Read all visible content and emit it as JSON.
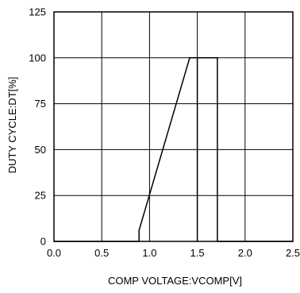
{
  "chart_data": {
    "type": "line",
    "title": "",
    "xlabel": "COMP VOLTAGE:VCOMP[V]",
    "ylabel": "DUTY CYCLE:DT[%]",
    "xlim": [
      0.0,
      2.5
    ],
    "ylim": [
      0,
      125
    ],
    "x_ticks": [
      "0.0",
      "0.5",
      "1.0",
      "1.5",
      "2.0",
      "2.5"
    ],
    "y_ticks": [
      "0",
      "25",
      "50",
      "75",
      "100",
      "125"
    ],
    "x_tick_values": [
      0,
      0.5,
      1.0,
      1.5,
      2.0,
      2.5
    ],
    "y_tick_values": [
      0,
      25,
      50,
      75,
      100,
      125
    ],
    "grid": true,
    "legend": "none",
    "series": [
      {
        "x": [
          0,
          0.89,
          0.89,
          1.42,
          1.5,
          1.5,
          1.71,
          1.71,
          2.5
        ],
        "y": [
          0,
          0,
          6,
          100,
          100,
          0,
          0,
          100,
          0
        ],
        "points": [
          [
            0.0,
            0
          ],
          [
            0.89,
            0
          ],
          [
            0.89,
            6
          ],
          [
            1.42,
            100
          ],
          [
            1.71,
            100
          ],
          [
            1.71,
            0
          ],
          [
            2.5,
            0
          ]
        ],
        "inner_edge": [
          [
            1.5,
            100
          ],
          [
            1.5,
            0
          ]
        ]
      }
    ],
    "colors": {
      "line": "#000000",
      "grid": "#000000",
      "background": "#ffffff"
    }
  }
}
